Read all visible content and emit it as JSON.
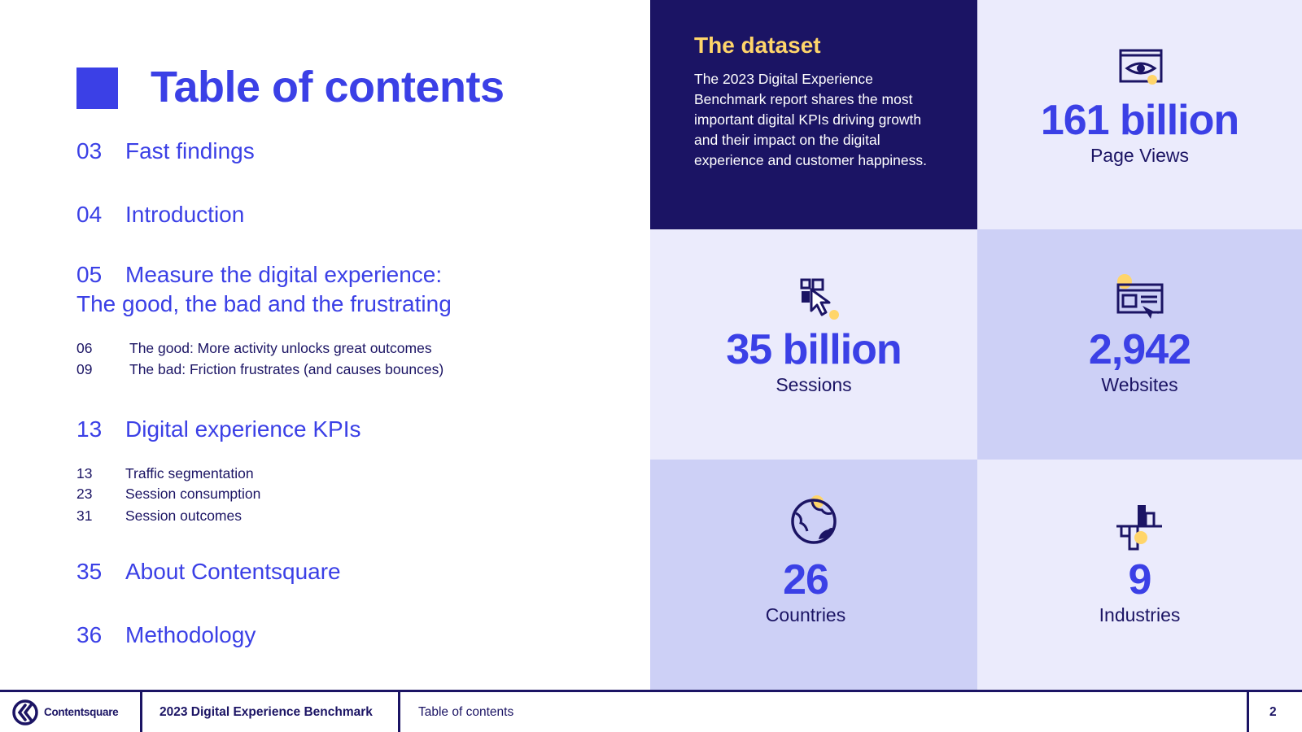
{
  "toc": {
    "title": "Table of contents",
    "entries": [
      {
        "num": "03",
        "label": "Fast findings"
      },
      {
        "num": "04",
        "label": "Introduction"
      },
      {
        "num": "05",
        "label": "Measure the digital experience:",
        "label2": "The good, the bad and the frustrating"
      },
      {
        "num": "13",
        "label": "Digital experience KPIs"
      },
      {
        "num": "35",
        "label": "About Contentsquare"
      },
      {
        "num": "36",
        "label": "Methodology"
      }
    ],
    "sub_05": [
      {
        "num": "06",
        "label": "The good: More activity unlocks great outcomes"
      },
      {
        "num": "09",
        "label": "The bad: Friction frustrates (and causes bounces)"
      }
    ],
    "sub_13": [
      {
        "num": "13",
        "label": "Traffic segmentation"
      },
      {
        "num": "23",
        "label": "Session consumption"
      },
      {
        "num": "31",
        "label": "Session outcomes"
      }
    ]
  },
  "dataset": {
    "heading": "The dataset",
    "body": "The 2023 Digital Experience Benchmark report shares the most important digital KPIs driving growth and their impact on the digital experience and customer happiness."
  },
  "stats": [
    {
      "value": "161 billion",
      "label": "Page Views",
      "icon": "eye-screen-icon"
    },
    {
      "value": "35 billion",
      "label": "Sessions",
      "icon": "cursor-click-icon"
    },
    {
      "value": "2,942",
      "label": "Websites",
      "icon": "browser-window-icon"
    },
    {
      "value": "26",
      "label": "Countries",
      "icon": "globe-icon"
    },
    {
      "value": "9",
      "label": "Industries",
      "icon": "industry-blocks-icon"
    }
  ],
  "footer": {
    "brand": "Contentsquare",
    "report": "2023 Digital Experience Benchmark",
    "section": "Table of contents",
    "page": "2"
  },
  "colors": {
    "accent": "#3b40e6",
    "navy": "#1b1464",
    "yellow": "#ffd56a",
    "tile_light": "#ebebfc",
    "tile_mid": "#cdd0f6"
  }
}
